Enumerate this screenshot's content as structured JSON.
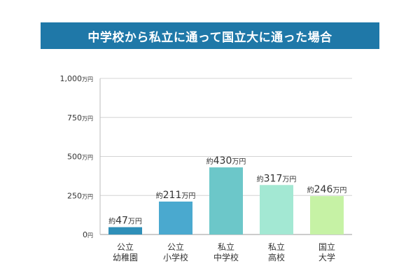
{
  "chart_data": {
    "type": "bar",
    "title": "中学校から私立に通って国立大に通った場合",
    "categories": [
      [
        "公立",
        "幼稚園"
      ],
      [
        "公立",
        "小学校"
      ],
      [
        "私立",
        "中学校"
      ],
      [
        "私立",
        "高校"
      ],
      [
        "国立",
        "大学"
      ]
    ],
    "values": [
      47,
      211,
      430,
      317,
      246
    ],
    "value_prefix": "約",
    "value_unit": "万円",
    "bar_colors": [
      "#2f8fb8",
      "#4aa9cf",
      "#6cc7c9",
      "#a3e8d3",
      "#c6f2a5"
    ],
    "ylim": [
      0,
      1000
    ],
    "yticks": [
      {
        "value": 0,
        "num": "0",
        "unit": "円"
      },
      {
        "value": 250,
        "num": "250",
        "unit": "万円"
      },
      {
        "value": 500,
        "num": "500",
        "unit": "万円"
      },
      {
        "value": 750,
        "num": "750",
        "unit": "万円"
      },
      {
        "value": 1000,
        "num": "1,000",
        "unit": "万円"
      }
    ],
    "grid": true,
    "legend": "none"
  }
}
